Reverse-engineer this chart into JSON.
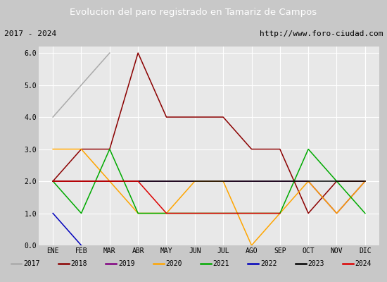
{
  "title": "Evolucion del paro registrado en Tamariz de Campos",
  "subtitle_left": "2017 - 2024",
  "subtitle_right": "http://www.foro-ciudad.com",
  "months": [
    "ENE",
    "FEB",
    "MAR",
    "ABR",
    "MAY",
    "JUN",
    "JUL",
    "AGO",
    "SEP",
    "OCT",
    "NOV",
    "DIC"
  ],
  "series": [
    {
      "year": "2017",
      "color": "#aaaaaa",
      "data": [
        4,
        null,
        6,
        null,
        null,
        null,
        null,
        null,
        null,
        null,
        null,
        null
      ]
    },
    {
      "year": "2018",
      "color": "#8b0000",
      "data": [
        2,
        3,
        3,
        6,
        4,
        4,
        4,
        3,
        3,
        1,
        2,
        2
      ]
    },
    {
      "year": "2019",
      "color": "#800080",
      "data": [
        2,
        2,
        2,
        2,
        2,
        2,
        2,
        2,
        2,
        2,
        1,
        2
      ]
    },
    {
      "year": "2020",
      "color": "#ffa500",
      "data": [
        3,
        3,
        2,
        1,
        1,
        2,
        2,
        0,
        1,
        2,
        1,
        2
      ]
    },
    {
      "year": "2021",
      "color": "#00aa00",
      "data": [
        2,
        1,
        3,
        1,
        1,
        1,
        1,
        1,
        1,
        3,
        2,
        1
      ]
    },
    {
      "year": "2022",
      "color": "#0000bb",
      "data": [
        1,
        0,
        null,
        null,
        null,
        null,
        null,
        null,
        null,
        null,
        null,
        null
      ]
    },
    {
      "year": "2023",
      "color": "#000000",
      "data": [
        2,
        2,
        2,
        2,
        2,
        2,
        2,
        2,
        2,
        2,
        2,
        2
      ]
    },
    {
      "year": "2024",
      "color": "#dd0000",
      "data": [
        2,
        2,
        2,
        2,
        1,
        1,
        1,
        1,
        1,
        null,
        null,
        null
      ]
    }
  ],
  "ylim": [
    0,
    6.2
  ],
  "yticks": [
    0.0,
    1.0,
    2.0,
    3.0,
    4.0,
    5.0,
    6.0
  ],
  "plot_bg": "#e8e8e8",
  "outer_bg": "#c8c8c8",
  "title_bg": "#4f7fc8",
  "title_color": "#ffffff",
  "grid_color": "#ffffff",
  "fig_width": 5.5,
  "fig_height": 4.0,
  "dpi": 100
}
